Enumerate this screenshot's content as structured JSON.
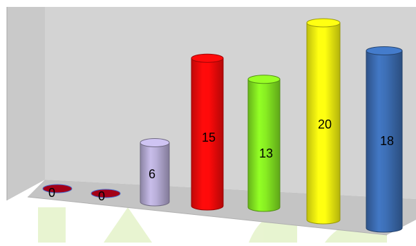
{
  "chart_data": {
    "type": "bar",
    "style": "3d-cylinder",
    "categories": [
      "",
      "",
      "",
      "",
      "",
      "",
      ""
    ],
    "values": [
      0,
      0,
      6,
      15,
      13,
      20,
      18
    ],
    "data_labels": [
      "0",
      "0",
      "6",
      "15",
      "13",
      "20",
      "18"
    ],
    "colors": [
      "#a30018",
      "#a30018",
      "#b9afd9",
      "#ff0a0a",
      "#88ee22",
      "#ffff10",
      "#3d6fb6"
    ],
    "title": "",
    "xlabel": "",
    "ylabel": "",
    "ylim": [
      0,
      20
    ],
    "grid": false,
    "legend": "none"
  },
  "watermark": {
    "color": "#dff0c0"
  },
  "wall_color": "#d3d3d3",
  "floor_color": "#c4c4c4"
}
